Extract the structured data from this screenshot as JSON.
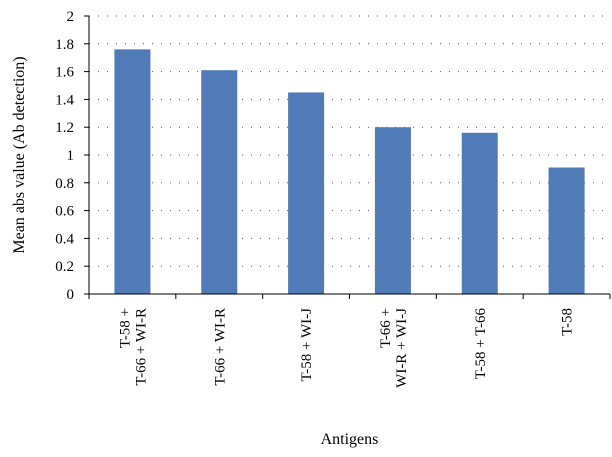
{
  "chart_data": {
    "type": "bar",
    "title": "",
    "xlabel": "Antigens",
    "ylabel": "Mean abs value (Ab detection)",
    "ylim": [
      0,
      2
    ],
    "yticks": [
      "0",
      "0.2",
      "0.4",
      "0.6",
      "0.8",
      "1",
      "1.2",
      "1.4",
      "1.6",
      "1.8",
      "2"
    ],
    "categories": [
      [
        "T-58 +",
        "T-66 + WI-R"
      ],
      [
        "T-66 + WI-R"
      ],
      [
        "T-58 + WI-J"
      ],
      [
        "T-66 +",
        "WI-R + WI-J"
      ],
      [
        "T-58 + T-66"
      ],
      [
        "T-58"
      ]
    ],
    "values": [
      1.76,
      1.61,
      1.45,
      1.2,
      1.16,
      0.91
    ],
    "bar_color": "#4F7CB8",
    "grid": "dotted-major",
    "legend": "none"
  }
}
